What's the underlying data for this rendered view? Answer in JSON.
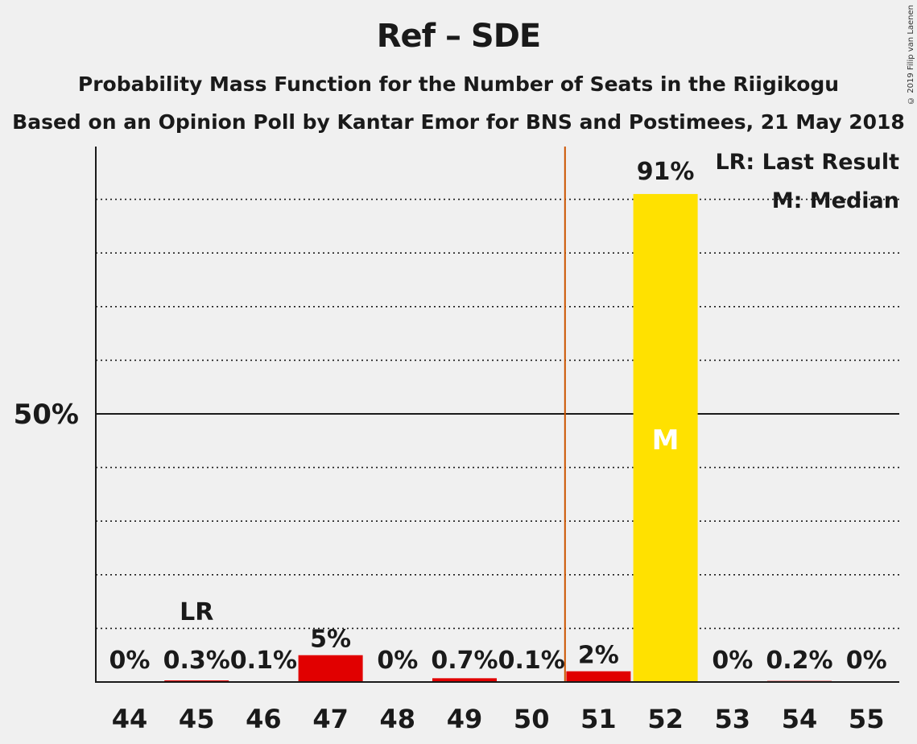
{
  "title": "Ref – SDE",
  "subtitle": "Probability Mass Function for the Number of Seats in the Riigikogu",
  "subtitle2": "Based on an Opinion Poll by Kantar Emor for BNS and Postimees, 21 May 2018",
  "copyright": "© 2019 Filip van Laenen",
  "legend": {
    "lr": "LR: Last Result",
    "median": "M: Median"
  },
  "colors": {
    "bar": "#e10000",
    "median_bar": "#ffe100",
    "last_result_line": "#cc5500",
    "background": "#f0f0f0"
  },
  "chart_data": {
    "type": "bar",
    "categories": [
      "44",
      "45",
      "46",
      "47",
      "48",
      "49",
      "50",
      "51",
      "52",
      "53",
      "54",
      "55"
    ],
    "values": [
      0,
      0.3,
      0.1,
      5,
      0,
      0.7,
      0.1,
      2,
      91,
      0,
      0.2,
      0
    ],
    "labels": [
      "0%",
      "0.3%",
      "0.1%",
      "5%",
      "0%",
      "0.7%",
      "0.1%",
      "2%",
      "91%",
      "0%",
      "0.2%",
      "0%"
    ],
    "ylim": [
      0,
      100
    ],
    "y_tick_label": "50%",
    "y_tick_value": 50,
    "gridlines_every": 10,
    "grid": true,
    "last_result": {
      "category": "45",
      "label": "LR"
    },
    "median": {
      "category": "52",
      "label": "M"
    },
    "vertical_line_between": [
      "50",
      "51"
    ],
    "legend_position": "top-right"
  }
}
